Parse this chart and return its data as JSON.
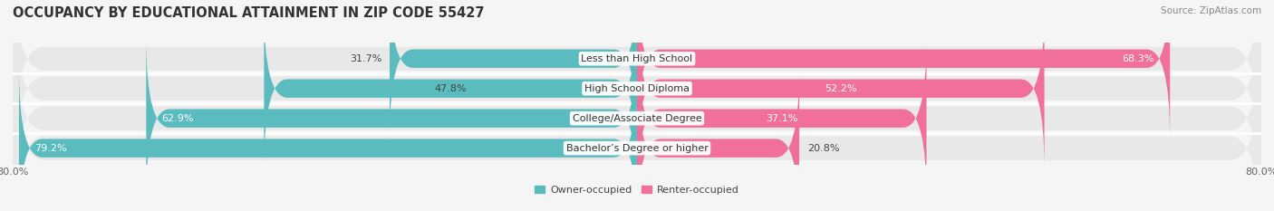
{
  "title": "OCCUPANCY BY EDUCATIONAL ATTAINMENT IN ZIP CODE 55427",
  "source": "Source: ZipAtlas.com",
  "categories": [
    "Less than High School",
    "High School Diploma",
    "College/Associate Degree",
    "Bachelor’s Degree or higher"
  ],
  "owner_pct": [
    31.7,
    47.8,
    62.9,
    79.2
  ],
  "renter_pct": [
    68.3,
    52.2,
    37.1,
    20.8
  ],
  "owner_color": "#5bbcbf",
  "renter_color": "#f0709a",
  "owner_label": "Owner-occupied",
  "renter_label": "Renter-occupied",
  "bg_color": "#f5f5f5",
  "row_bg_color": "#e8e8e8",
  "title_fontsize": 10.5,
  "source_fontsize": 7.5,
  "label_fontsize": 8,
  "tick_fontsize": 8,
  "pct_fontsize": 8
}
